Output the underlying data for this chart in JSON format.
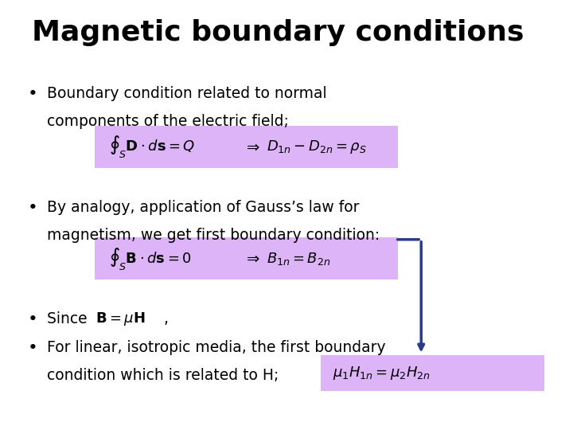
{
  "title": "Magnetic boundary conditions",
  "background_color": "#ffffff",
  "title_fontsize": 26,
  "text_color": "#000000",
  "bullet_color": "#000000",
  "eq_bg_color": "#ddb4f8",
  "arrow_color": "#2b3a8c",
  "eq1_latex": "$\\oint_S \\mathbf{D} \\cdot d\\mathbf{s} = Q$",
  "eq1_arrow": "$\\Rightarrow$",
  "eq1_rhs": "$D_{1n} - D_{2n} = \\rho_S$",
  "eq2_latex": "$\\oint_S \\mathbf{B} \\cdot d\\mathbf{s} = 0$",
  "eq2_arrow": "$\\Rightarrow$",
  "eq2_rhs": "$B_{1n} = B_{2n}$",
  "eq3_latex": "$\\mu_1 H_{1n} = \\mu_2 H_{2n}$",
  "since_inline": "$\\mathbf{B} = \\mu\\mathbf{H}$",
  "bullet1_line1": "Boundary condition related to normal",
  "bullet1_line2": "components of the electric field;",
  "bullet2_line1": "By analogy, application of Gauss’s law for",
  "bullet2_line2": "magnetism, we get first boundary condition:",
  "bullet3_text": "Since",
  "bullet4_line1": "For linear, isotropic media, the first bo⁠undary",
  "bullet4_line2": "condition which is related to H;"
}
